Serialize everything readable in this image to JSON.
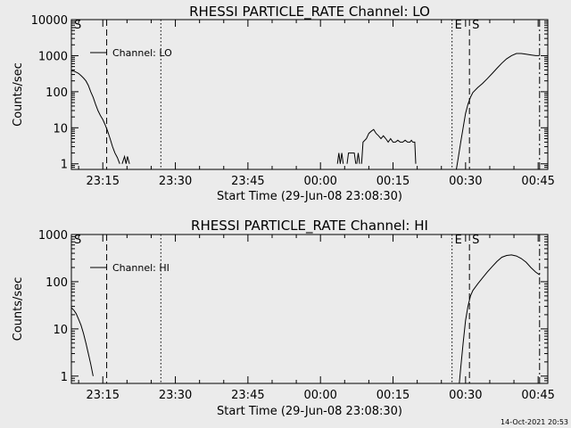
{
  "footer": {
    "timestamp": "14-Oct-2021 20:53"
  },
  "chart_data": [
    {
      "type": "line",
      "title": "RHESSI PARTICLE_RATE Channel: LO",
      "xlabel": "Start Time (29-Jun-08 23:08:30)",
      "ylabel": "Counts/sec",
      "x_unit": "minutes since 23:08:30",
      "xlim": [
        0,
        98.5
      ],
      "ylim": [
        0.7,
        10000
      ],
      "yscale": "log",
      "x_ticks": [
        {
          "x": 6.5,
          "label": "23:15"
        },
        {
          "x": 21.5,
          "label": "23:30"
        },
        {
          "x": 36.5,
          "label": "23:45"
        },
        {
          "x": 51.5,
          "label": "00:00"
        },
        {
          "x": 66.5,
          "label": "00:15"
        },
        {
          "x": 81.5,
          "label": "00:30"
        },
        {
          "x": 96.5,
          "label": "00:45"
        }
      ],
      "y_ticks": [
        {
          "y": 1,
          "label": "1"
        },
        {
          "y": 10,
          "label": "10"
        },
        {
          "y": 100,
          "label": "100"
        },
        {
          "y": 1000,
          "label": "1000"
        },
        {
          "y": 10000,
          "label": "10000"
        }
      ],
      "legend": {
        "label": "Channel: LO",
        "position": "top-left"
      },
      "markers": [
        {
          "x": 0,
          "label": "S",
          "style": "dashed"
        },
        {
          "x": 7.3,
          "label": "",
          "style": "dashed"
        },
        {
          "x": 18.5,
          "label": "",
          "style": "dotted"
        },
        {
          "x": 78.7,
          "label": "E",
          "style": "dotted"
        },
        {
          "x": 82.3,
          "label": "S",
          "style": "dashed"
        },
        {
          "x": 96.8,
          "label": "",
          "style": "dashdot"
        }
      ],
      "series": [
        {
          "segments": [
            [
              [
                0,
                380
              ],
              [
                0.5,
                370
              ],
              [
                1,
                350
              ],
              [
                1.5,
                320
              ],
              [
                2,
                280
              ],
              [
                2.5,
                240
              ],
              [
                3,
                200
              ],
              [
                3.5,
                150
              ],
              [
                4,
                100
              ],
              [
                4.5,
                70
              ],
              [
                5,
                45
              ],
              [
                5.5,
                30
              ],
              [
                6,
                22
              ],
              [
                6.5,
                17
              ],
              [
                7,
                12
              ],
              [
                7.5,
                8
              ],
              [
                8,
                5
              ],
              [
                8.5,
                3
              ],
              [
                9,
                2
              ],
              [
                9.5,
                1.5
              ],
              [
                10,
                1
              ]
            ],
            [
              [
                10.5,
                1
              ],
              [
                11,
                1.6
              ],
              [
                11.3,
                1
              ],
              [
                11.6,
                1.6
              ],
              [
                12,
                1
              ]
            ],
            [
              [
                55,
                1
              ],
              [
                55.3,
                2
              ],
              [
                55.6,
                1
              ],
              [
                55.9,
                2
              ],
              [
                56.2,
                1
              ]
            ],
            [
              [
                57,
                1
              ],
              [
                57.3,
                2
              ],
              [
                58.5,
                2
              ],
              [
                58.8,
                1
              ]
            ],
            [
              [
                59,
                1
              ],
              [
                59.3,
                2
              ],
              [
                59.6,
                1
              ]
            ],
            [
              [
                60,
                1
              ],
              [
                60.3,
                4
              ],
              [
                61,
                5
              ],
              [
                61.5,
                7
              ],
              [
                62,
                8
              ],
              [
                62.5,
                9
              ],
              [
                63,
                7
              ],
              [
                63.5,
                6
              ],
              [
                64,
                5
              ],
              [
                64.5,
                6
              ],
              [
                65,
                5
              ],
              [
                65.5,
                4
              ],
              [
                66,
                5
              ],
              [
                66.5,
                4
              ],
              [
                67,
                4
              ],
              [
                67.5,
                4.5
              ],
              [
                68,
                4
              ],
              [
                68.5,
                4
              ],
              [
                69,
                4.5
              ],
              [
                69.5,
                4
              ],
              [
                70,
                4
              ],
              [
                70.3,
                4.5
              ],
              [
                70.6,
                4
              ],
              [
                71,
                4
              ],
              [
                71.2,
                1
              ]
            ],
            [
              [
                79.6,
                0.7
              ],
              [
                80,
                1.5
              ],
              [
                80.5,
                4
              ],
              [
                81,
                10
              ],
              [
                81.5,
                25
              ],
              [
                82,
                45
              ],
              [
                82.5,
                70
              ],
              [
                83,
                95
              ],
              [
                84,
                130
              ],
              [
                85,
                170
              ],
              [
                86,
                230
              ],
              [
                87,
                320
              ],
              [
                88,
                450
              ],
              [
                89,
                620
              ],
              [
                90,
                820
              ],
              [
                91,
                1000
              ],
              [
                92,
                1150
              ],
              [
                93,
                1150
              ],
              [
                94,
                1100
              ],
              [
                95,
                1050
              ],
              [
                96,
                1000
              ],
              [
                96.8,
                1000
              ]
            ]
          ]
        }
      ]
    },
    {
      "type": "line",
      "title": "RHESSI PARTICLE_RATE Channel: HI",
      "xlabel": "Start Time (29-Jun-08 23:08:30)",
      "ylabel": "Counts/sec",
      "x_unit": "minutes since 23:08:30",
      "xlim": [
        0,
        98.5
      ],
      "ylim": [
        0.7,
        1000
      ],
      "yscale": "log",
      "x_ticks": [
        {
          "x": 6.5,
          "label": "23:15"
        },
        {
          "x": 21.5,
          "label": "23:30"
        },
        {
          "x": 36.5,
          "label": "23:45"
        },
        {
          "x": 51.5,
          "label": "00:00"
        },
        {
          "x": 66.5,
          "label": "00:15"
        },
        {
          "x": 81.5,
          "label": "00:30"
        },
        {
          "x": 96.5,
          "label": "00:45"
        }
      ],
      "y_ticks": [
        {
          "y": 1,
          "label": "1"
        },
        {
          "y": 10,
          "label": "10"
        },
        {
          "y": 100,
          "label": "100"
        },
        {
          "y": 1000,
          "label": "1000"
        }
      ],
      "legend": {
        "label": "Channel: HI",
        "position": "top-left"
      },
      "markers": [
        {
          "x": 0,
          "label": "S",
          "style": "dashed"
        },
        {
          "x": 7.3,
          "label": "",
          "style": "dashed"
        },
        {
          "x": 18.5,
          "label": "",
          "style": "dotted"
        },
        {
          "x": 78.7,
          "label": "E",
          "style": "dotted"
        },
        {
          "x": 82.3,
          "label": "S",
          "style": "dashed"
        },
        {
          "x": 96.8,
          "label": "",
          "style": "dashdot"
        }
      ],
      "series": [
        {
          "segments": [
            [
              [
                0,
                28
              ],
              [
                0.5,
                25
              ],
              [
                1,
                21
              ],
              [
                1.5,
                16
              ],
              [
                2,
                12
              ],
              [
                2.5,
                8
              ],
              [
                3,
                5
              ],
              [
                3.5,
                3
              ],
              [
                4,
                1.8
              ],
              [
                4.5,
                1
              ]
            ],
            [
              [
                80.2,
                0.7
              ],
              [
                80.5,
                1.5
              ],
              [
                81,
                5
              ],
              [
                81.5,
                15
              ],
              [
                82,
                30
              ],
              [
                82.5,
                50
              ],
              [
                83,
                65
              ],
              [
                84,
                90
              ],
              [
                85,
                120
              ],
              [
                86,
                160
              ],
              [
                87,
                210
              ],
              [
                88,
                270
              ],
              [
                89,
                330
              ],
              [
                90,
                360
              ],
              [
                91,
                370
              ],
              [
                92,
                350
              ],
              [
                93,
                310
              ],
              [
                94,
                260
              ],
              [
                95,
                200
              ],
              [
                96,
                160
              ],
              [
                96.8,
                140
              ]
            ]
          ]
        }
      ]
    }
  ]
}
